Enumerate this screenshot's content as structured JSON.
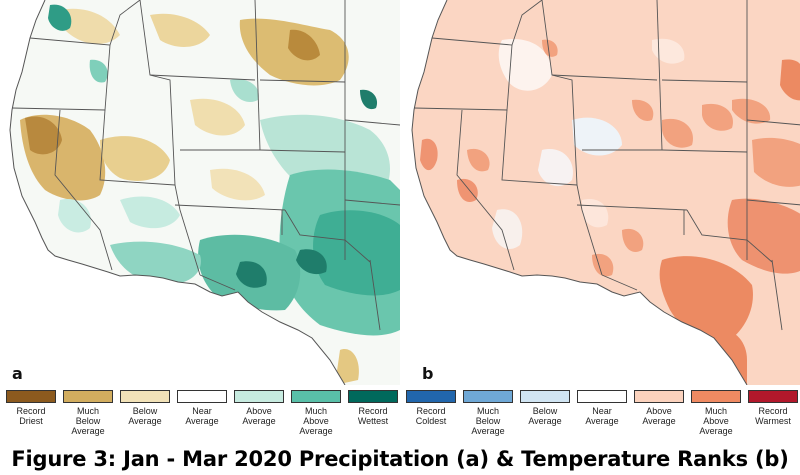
{
  "panels": [
    {
      "letter": "a",
      "variable": "precipitation"
    },
    {
      "letter": "b",
      "variable": "temperature"
    }
  ],
  "legend_precip": [
    {
      "label": "Record\nDriest",
      "color": "#8c5a1e"
    },
    {
      "label": "Much\nBelow\nAverage",
      "color": "#d2ad5f"
    },
    {
      "label": "Below\nAverage",
      "color": "#f2e2b8"
    },
    {
      "label": "Near\nAverage",
      "color": "#ffffff"
    },
    {
      "label": "Above\nAverage",
      "color": "#c7ebe0"
    },
    {
      "label": "Much\nAbove\nAverage",
      "color": "#59bfa8"
    },
    {
      "label": "Record\nWettest",
      "color": "#00695c"
    }
  ],
  "legend_temp": [
    {
      "label": "Record\nColdest",
      "color": "#2166ac"
    },
    {
      "label": "Much\nBelow\nAverage",
      "color": "#6fa8d6"
    },
    {
      "label": "Below\nAverage",
      "color": "#d1e5f3"
    },
    {
      "label": "Near\nAverage",
      "color": "#ffffff"
    },
    {
      "label": "Above\nAverage",
      "color": "#fbd2bd"
    },
    {
      "label": "Much\nAbove\nAverage",
      "color": "#ef8a62"
    },
    {
      "label": "Record\nWarmest",
      "color": "#b2182b"
    }
  ],
  "caption": "Figure 3: Jan - Mar 2020 Precipitation (a) & Temperature Ranks (b)"
}
